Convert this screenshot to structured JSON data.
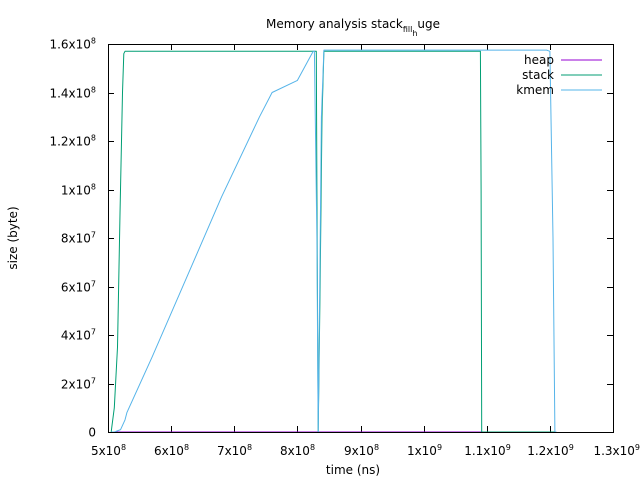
{
  "chart_data": {
    "type": "line",
    "title": "Memory analysis stack",
    "title_sub": "fill",
    "title_mid": "h",
    "title_end": "uge",
    "xlabel": "time (ns)",
    "ylabel": "size (byte)",
    "xlim": [
      500000000,
      1300000000
    ],
    "ylim": [
      0,
      160000000
    ],
    "grid": false,
    "legend_position": "top-right",
    "x_ticks": [
      {
        "value": 500000000,
        "base": "5x10",
        "exp": "8"
      },
      {
        "value": 600000000,
        "base": "6x10",
        "exp": "8"
      },
      {
        "value": 700000000,
        "base": "7x10",
        "exp": "8"
      },
      {
        "value": 800000000,
        "base": "8x10",
        "exp": "8"
      },
      {
        "value": 900000000,
        "base": "9x10",
        "exp": "8"
      },
      {
        "value": 1000000000,
        "base": "1x10",
        "exp": "9"
      },
      {
        "value": 1100000000,
        "base": "1.1x10",
        "exp": "9"
      },
      {
        "value": 1200000000,
        "base": "1.2x10",
        "exp": "9"
      },
      {
        "value": 1300000000,
        "base": "1.3x10",
        "exp": "9"
      }
    ],
    "y_ticks": [
      {
        "value": 0,
        "base": "0",
        "exp": ""
      },
      {
        "value": 20000000,
        "base": "2x10",
        "exp": "7"
      },
      {
        "value": 40000000,
        "base": "4x10",
        "exp": "7"
      },
      {
        "value": 60000000,
        "base": "6x10",
        "exp": "7"
      },
      {
        "value": 80000000,
        "base": "8x10",
        "exp": "7"
      },
      {
        "value": 100000000,
        "base": "1x10",
        "exp": "8"
      },
      {
        "value": 120000000,
        "base": "1.2x10",
        "exp": "8"
      },
      {
        "value": 140000000,
        "base": "1.4x10",
        "exp": "8"
      },
      {
        "value": 160000000,
        "base": "1.6x10",
        "exp": "8"
      }
    ],
    "series": [
      {
        "name": "heap",
        "color": "#9400d3",
        "x": [
          505000000,
          1210000000
        ],
        "y": [
          0,
          0
        ]
      },
      {
        "name": "stack",
        "color": "#009e73",
        "x": [
          505000000,
          506000000,
          510000000,
          515000000,
          519000000,
          523000000,
          525000000,
          527000000,
          830000000,
          831000000,
          833000000,
          836000000,
          839000000,
          842000000,
          1090000000,
          1091000000,
          1092000000,
          1210000000
        ],
        "y": [
          0,
          2000000,
          10000000,
          35000000,
          90000000,
          140000000,
          156000000,
          157000000,
          157000000,
          100000000,
          0,
          60000000,
          130000000,
          157000000,
          157000000,
          100000000,
          0,
          0
        ]
      },
      {
        "name": "kmem",
        "color": "#56b4e9",
        "x": [
          505000000,
          510000000,
          520000000,
          527000000,
          530000000,
          570000000,
          620000000,
          680000000,
          740000000,
          760000000,
          800000000,
          825000000,
          827000000,
          831000000,
          833000000,
          835000000,
          838000000,
          842000000,
          1050000000,
          1195000000,
          1200000000,
          1205000000,
          1208000000,
          1210000000
        ],
        "y": [
          0,
          0,
          1000000,
          5000000,
          8000000,
          31000000,
          61000000,
          97000000,
          130000000,
          140000000,
          145000000,
          157000000,
          157000000,
          80000000,
          0,
          50000000,
          130000000,
          157500000,
          157500000,
          157500000,
          157000000,
          80000000,
          0,
          0
        ]
      }
    ]
  }
}
